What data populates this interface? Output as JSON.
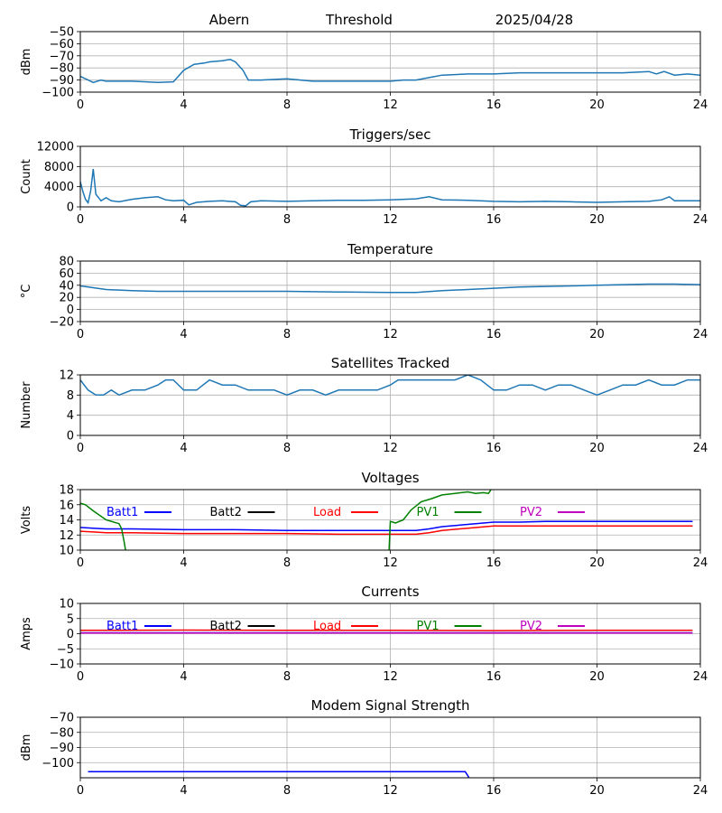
{
  "header": {
    "station": "Abern",
    "label": "Threshold",
    "date": "2025/04/28"
  },
  "chart_data": [
    {
      "type": "line",
      "title": "",
      "ylabel": "dBm",
      "xlim": [
        0,
        24
      ],
      "xticks": [
        0,
        4,
        8,
        12,
        16,
        20,
        24
      ],
      "ylim": [
        -100,
        -50
      ],
      "yticks": [
        -100,
        -90,
        -80,
        -70,
        -60,
        -50
      ],
      "ytick_labels": [
        "−100",
        "−90",
        "−80",
        "−70",
        "−60",
        "−50"
      ],
      "grid": true,
      "series": [
        {
          "color": "#1f77b4",
          "x": [
            0,
            0.3,
            0.5,
            0.8,
            1,
            2,
            3,
            3.6,
            4,
            4.4,
            4.8,
            5,
            5.5,
            5.8,
            6,
            6.3,
            6.5,
            7,
            8,
            9,
            10,
            11,
            12,
            12.5,
            13,
            13.5,
            14,
            15,
            16,
            17,
            18,
            20,
            21,
            22,
            22.3,
            22.6,
            23,
            23.5,
            24
          ],
          "y": [
            -87,
            -90,
            -92,
            -90,
            -91,
            -91,
            -92,
            -91.5,
            -82,
            -77,
            -76,
            -75,
            -74,
            -73,
            -75,
            -82,
            -90,
            -90,
            -89,
            -91,
            -91,
            -91,
            -91,
            -90,
            -90,
            -88,
            -86,
            -85,
            -85,
            -84,
            -84,
            -84,
            -84,
            -83,
            -85,
            -83,
            -86,
            -85,
            -86
          ]
        }
      ]
    },
    {
      "type": "line",
      "title": "Triggers/sec",
      "ylabel": "Count",
      "xlim": [
        0,
        24
      ],
      "xticks": [
        0,
        4,
        8,
        12,
        16,
        20,
        24
      ],
      "ylim": [
        0,
        12000
      ],
      "yticks": [
        0,
        4000,
        8000,
        12000
      ],
      "ytick_labels": [
        "0",
        "4000",
        "8000",
        "12000"
      ],
      "grid": true,
      "series": [
        {
          "color": "#1f77b4",
          "x": [
            0,
            0.1,
            0.2,
            0.3,
            0.4,
            0.5,
            0.6,
            0.8,
            1,
            1.2,
            1.5,
            2,
            2.5,
            3,
            3.3,
            3.6,
            4,
            4.2,
            4.5,
            5,
            5.5,
            6,
            6.2,
            6.4,
            6.6,
            7,
            8,
            9,
            10,
            11,
            12,
            13,
            13.5,
            14,
            15,
            16,
            17,
            18,
            19,
            20,
            21,
            22,
            22.5,
            22.8,
            23,
            24
          ],
          "y": [
            5000,
            3000,
            1500,
            800,
            3200,
            7500,
            2500,
            1200,
            1800,
            1200,
            1000,
            1500,
            1800,
            2000,
            1400,
            1200,
            1300,
            400,
            900,
            1100,
            1200,
            1000,
            300,
            200,
            1000,
            1200,
            1100,
            1200,
            1300,
            1300,
            1400,
            1600,
            2000,
            1400,
            1300,
            1100,
            1000,
            1100,
            1000,
            900,
            1000,
            1100,
            1400,
            2000,
            1200,
            1200
          ]
        }
      ]
    },
    {
      "type": "line",
      "title": "Temperature",
      "ylabel": "°C",
      "xlim": [
        0,
        24
      ],
      "xticks": [
        0,
        4,
        8,
        12,
        16,
        20,
        24
      ],
      "ylim": [
        -20,
        80
      ],
      "yticks": [
        -20,
        0,
        20,
        40,
        60,
        80
      ],
      "ytick_labels": [
        "−20",
        "0",
        "20",
        "40",
        "60",
        "80"
      ],
      "grid": true,
      "series": [
        {
          "color": "#1f77b4",
          "x": [
            0,
            0.5,
            1,
            2,
            3,
            4,
            6,
            8,
            10,
            12,
            13,
            14,
            15,
            16,
            17,
            18,
            19,
            20,
            21,
            22,
            23,
            24
          ],
          "y": [
            39,
            36,
            33,
            31,
            30,
            30,
            30,
            30,
            29,
            28,
            28,
            31,
            33,
            35,
            37,
            38,
            39,
            40,
            41,
            42,
            42,
            41
          ]
        }
      ]
    },
    {
      "type": "line",
      "title": "Satellites Tracked",
      "ylabel": "Number",
      "xlim": [
        0,
        24
      ],
      "xticks": [
        0,
        4,
        8,
        12,
        16,
        20,
        24
      ],
      "ylim": [
        0,
        12
      ],
      "yticks": [
        0,
        4,
        8,
        12
      ],
      "ytick_labels": [
        "0",
        "4",
        "8",
        "12"
      ],
      "grid": true,
      "series": [
        {
          "color": "#1f77b4",
          "x": [
            0,
            0.3,
            0.6,
            0.9,
            1.2,
            1.5,
            2,
            2.5,
            3,
            3.3,
            3.6,
            4,
            4.5,
            5,
            5.5,
            6,
            6.5,
            7,
            7.5,
            8,
            8.5,
            9,
            9.5,
            10,
            10.5,
            11,
            11.5,
            12,
            12.3,
            12.6,
            13,
            13.5,
            14,
            14.5,
            15,
            15.5,
            16,
            16.5,
            17,
            17.5,
            18,
            18.5,
            19,
            19.5,
            20,
            20.5,
            21,
            21.5,
            22,
            22.5,
            23,
            23.5,
            24
          ],
          "y": [
            11,
            9,
            8,
            8,
            9,
            8,
            9,
            9,
            10,
            11,
            11,
            9,
            9,
            11,
            10,
            10,
            9,
            9,
            9,
            8,
            9,
            9,
            8,
            9,
            9,
            9,
            9,
            10,
            11,
            11,
            11,
            11,
            11,
            11,
            12,
            11,
            9,
            9,
            10,
            10,
            9,
            10,
            10,
            9,
            8,
            9,
            10,
            10,
            11,
            10,
            10,
            11,
            11
          ]
        }
      ]
    },
    {
      "type": "line",
      "title": "Voltages",
      "ylabel": "Volts",
      "xlim": [
        0,
        24
      ],
      "xticks": [
        0,
        4,
        8,
        12,
        16,
        20,
        24
      ],
      "ylim": [
        10,
        18
      ],
      "yticks": [
        10,
        12,
        14,
        16,
        18
      ],
      "ytick_labels": [
        "10",
        "12",
        "14",
        "16",
        "18"
      ],
      "grid": true,
      "legend": [
        "Batt1",
        "Batt2",
        "Load",
        "PV1",
        "PV2"
      ],
      "series": [
        {
          "name": "Batt1",
          "color": "#0000ff",
          "x": [
            0,
            0.5,
            1,
            2,
            4,
            6,
            8,
            10,
            12,
            13,
            13.5,
            14,
            15,
            16,
            17,
            18,
            20,
            22,
            23.7
          ],
          "y": [
            13,
            12.9,
            12.8,
            12.8,
            12.7,
            12.7,
            12.6,
            12.6,
            12.6,
            12.6,
            12.8,
            13.1,
            13.4,
            13.7,
            13.7,
            13.8,
            13.8,
            13.8,
            13.8
          ]
        },
        {
          "name": "Load",
          "color": "#ff0000",
          "x": [
            0,
            0.5,
            1,
            2,
            4,
            6,
            8,
            10,
            11,
            12,
            13,
            13.5,
            14,
            15,
            16,
            17,
            18,
            20,
            22,
            23.7
          ],
          "y": [
            12.5,
            12.4,
            12.3,
            12.3,
            12.2,
            12.2,
            12.2,
            12.1,
            12.1,
            12.1,
            12.1,
            12.3,
            12.6,
            12.9,
            13.2,
            13.2,
            13.2,
            13.2,
            13.2,
            13.2
          ]
        },
        {
          "name": "PV1",
          "color": "#008000",
          "x": [
            0,
            0.2,
            0.5,
            1,
            1.5,
            1.6,
            1.7,
            1.75
          ],
          "y": [
            16.2,
            16,
            15.2,
            14,
            13.5,
            12.8,
            11,
            10
          ]
        },
        {
          "name": "PV1",
          "color": "#008000",
          "x": [
            11.95,
            12,
            12.2,
            12.5,
            12.8,
            13.2,
            13.6,
            14,
            14.5,
            15,
            15.3,
            15.6,
            15.8,
            15.9
          ],
          "y": [
            10,
            13.8,
            13.6,
            14,
            15.3,
            16.4,
            16.8,
            17.3,
            17.5,
            17.7,
            17.5,
            17.6,
            17.5,
            18
          ]
        }
      ]
    },
    {
      "type": "line",
      "title": "Currents",
      "ylabel": "Amps",
      "xlim": [
        0,
        24
      ],
      "xticks": [
        0,
        4,
        8,
        12,
        16,
        20,
        24
      ],
      "ylim": [
        -10,
        10
      ],
      "yticks": [
        -10,
        -5,
        0,
        5,
        10
      ],
      "ytick_labels": [
        "−10",
        "−5",
        "0",
        "5",
        "10"
      ],
      "grid": true,
      "legend": [
        "Batt1",
        "Batt2",
        "Load",
        "PV1",
        "PV2"
      ],
      "series": [
        {
          "name": "Batt1",
          "color": "#0000ff",
          "x": [
            0,
            23.7
          ],
          "y": [
            0.3,
            0.3
          ]
        },
        {
          "name": "PV2",
          "color": "#bf00bf",
          "x": [
            0,
            23.7
          ],
          "y": [
            0.2,
            0.2
          ]
        },
        {
          "name": "Load",
          "color": "#ff0000",
          "x": [
            0,
            4,
            8,
            12,
            16,
            20,
            23.7
          ],
          "y": [
            1.1,
            1.2,
            1.1,
            1.1,
            1.0,
            1.1,
            1.1
          ]
        }
      ]
    },
    {
      "type": "line",
      "title": "Modem Signal Strength",
      "ylabel": "dBm",
      "xlim": [
        0,
        24
      ],
      "xticks": [
        0,
        4,
        8,
        12,
        16,
        20,
        24
      ],
      "ylim": [
        -110,
        -70
      ],
      "yticks": [
        -100,
        -90,
        -80,
        -70
      ],
      "ytick_labels": [
        "−100",
        "−90",
        "−80",
        "−70"
      ],
      "grid": true,
      "series": [
        {
          "color": "#0000ff",
          "x": [
            0.3,
            14.9,
            15.05
          ],
          "y": [
            -106,
            -106,
            -110
          ]
        }
      ]
    }
  ],
  "legend_colors": {
    "Batt1": "#0000ff",
    "Batt2": "#000000",
    "Load": "#ff0000",
    "PV1": "#008000",
    "PV2": "#bf00bf"
  }
}
